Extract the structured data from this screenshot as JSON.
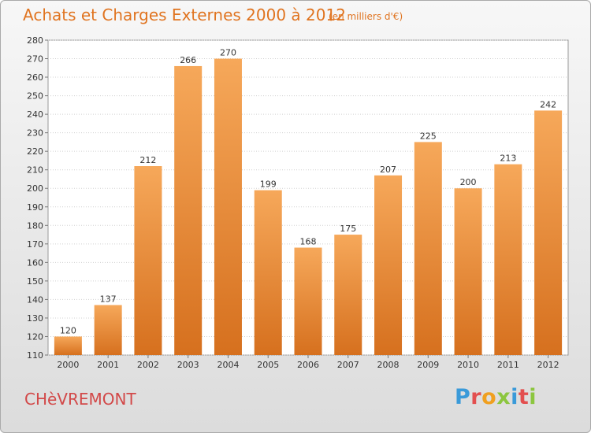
{
  "header": {
    "title": "Achats et Charges Externes 2000 à 2012",
    "subtitle": "(en milliers d'€)"
  },
  "footer": {
    "commune": "CHèVREMONT",
    "logo_letters": [
      "P",
      "r",
      "o",
      "x",
      "i",
      "t",
      "i"
    ]
  },
  "colors": {
    "title": "#e07420",
    "commune": "#d24848",
    "bar_light": "#f6a85a",
    "bar_dark": "#d6701e"
  },
  "chart_data": {
    "type": "bar",
    "categories": [
      "2000",
      "2001",
      "2002",
      "2003",
      "2004",
      "2005",
      "2006",
      "2007",
      "2008",
      "2009",
      "2010",
      "2011",
      "2012"
    ],
    "values": [
      120,
      137,
      212,
      266,
      270,
      199,
      168,
      175,
      207,
      225,
      200,
      213,
      242
    ],
    "ylim": [
      110,
      280
    ],
    "yticks": [
      110,
      120,
      130,
      140,
      150,
      160,
      170,
      180,
      190,
      200,
      210,
      220,
      230,
      240,
      250,
      260,
      270,
      280
    ],
    "grid": true,
    "title": "Achats et Charges Externes 2000 à 2012"
  }
}
